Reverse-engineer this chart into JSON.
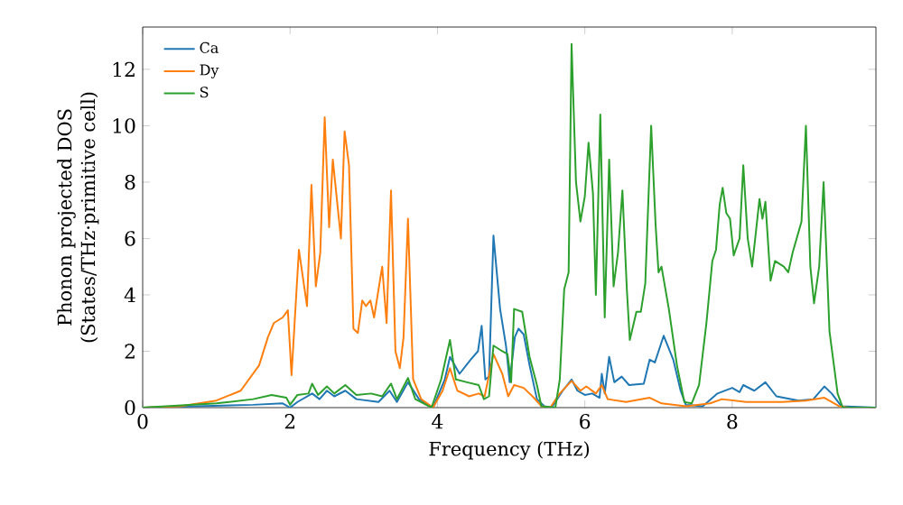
{
  "chart_data": {
    "type": "line",
    "xlabel": "Frequency (THz)",
    "ylabel": "Phonon projected DOS\n(States/THz·primitive cell)",
    "xlim": [
      0,
      9.95
    ],
    "ylim": [
      0,
      13.5
    ],
    "xticks": [
      0,
      2,
      4,
      6,
      8
    ],
    "yticks": [
      0,
      2,
      4,
      6,
      8,
      10,
      12
    ],
    "grid": false,
    "legend": "top left",
    "marker": "none",
    "line_style": "solid",
    "series": [
      {
        "name": "Ca",
        "color": "#1f77b4",
        "x": [
          0,
          1.5,
          1.9,
          2.0,
          2.1,
          2.3,
          2.4,
          2.5,
          2.6,
          2.75,
          2.9,
          3.2,
          3.35,
          3.45,
          3.6,
          3.75,
          3.94,
          4.1,
          4.17,
          4.3,
          4.45,
          4.55,
          4.6,
          4.65,
          4.7,
          4.76,
          4.85,
          4.93,
          4.98,
          5.05,
          5.1,
          5.17,
          5.25,
          5.35,
          5.45,
          5.55,
          5.7,
          5.82,
          5.9,
          6.0,
          6.1,
          6.2,
          6.23,
          6.27,
          6.33,
          6.4,
          6.5,
          6.6,
          6.8,
          6.88,
          6.95,
          7.07,
          7.2,
          7.3,
          7.37,
          7.6,
          7.8,
          8.0,
          8.1,
          8.15,
          8.3,
          8.45,
          8.6,
          8.9,
          9.1,
          9.25,
          9.35,
          9.48,
          9.95
        ],
        "values": [
          0,
          0.1,
          0.15,
          0,
          0.2,
          0.5,
          0.3,
          0.6,
          0.4,
          0.6,
          0.3,
          0.2,
          0.6,
          0.2,
          0.9,
          0.3,
          0,
          1.0,
          1.8,
          1.2,
          1.7,
          2.0,
          2.9,
          1.0,
          1.1,
          6.1,
          3.5,
          2.2,
          0.9,
          2.5,
          2.8,
          2.6,
          1.5,
          0.3,
          0.05,
          0,
          0.6,
          1.0,
          0.6,
          0.45,
          0.5,
          0.35,
          1.2,
          0.5,
          1.8,
          0.9,
          1.1,
          0.8,
          0.85,
          1.7,
          1.6,
          2.55,
          1.7,
          0.6,
          0.1,
          0.05,
          0.5,
          0.7,
          0.55,
          0.8,
          0.6,
          0.9,
          0.4,
          0.25,
          0.3,
          0.75,
          0.5,
          0.05,
          0
        ]
      },
      {
        "name": "Dy",
        "color": "#ff7f0e",
        "x": [
          0,
          0.51,
          1.0,
          1.33,
          1.58,
          1.7,
          1.78,
          1.9,
          1.97,
          2.02,
          2.12,
          2.23,
          2.29,
          2.35,
          2.41,
          2.47,
          2.53,
          2.58,
          2.69,
          2.74,
          2.8,
          2.86,
          2.92,
          2.98,
          3.03,
          3.09,
          3.14,
          3.25,
          3.31,
          3.37,
          3.43,
          3.49,
          3.54,
          3.6,
          3.67,
          3.78,
          3.94,
          4.07,
          4.17,
          4.27,
          4.43,
          4.56,
          4.64,
          4.76,
          4.88,
          4.96,
          5.04,
          5.17,
          5.29,
          5.41,
          5.53,
          5.66,
          5.82,
          5.94,
          6.02,
          6.15,
          6.23,
          6.31,
          6.56,
          6.88,
          7.04,
          7.37,
          7.7,
          7.86,
          8.19,
          8.68,
          9.0,
          9.25,
          9.45,
          9.58,
          9.95
        ],
        "values": [
          0,
          0.05,
          0.25,
          0.6,
          1.5,
          2.5,
          3.0,
          3.2,
          3.45,
          1.15,
          5.6,
          3.6,
          7.9,
          4.3,
          5.5,
          10.3,
          6.4,
          8.8,
          6.0,
          9.8,
          8.6,
          2.8,
          2.65,
          3.8,
          3.6,
          3.8,
          3.2,
          5.0,
          3.0,
          7.7,
          2.0,
          1.4,
          2.5,
          6.7,
          1.0,
          0.3,
          0,
          0.6,
          1.4,
          0.6,
          0.4,
          0.5,
          0.4,
          1.9,
          1.2,
          0.4,
          0.8,
          0.7,
          0.4,
          0.05,
          0,
          0.5,
          0.95,
          0.6,
          0.75,
          0.5,
          0.8,
          0.3,
          0.2,
          0.35,
          0.15,
          0.05,
          0.15,
          0.3,
          0.2,
          0.2,
          0.25,
          0.35,
          0.05,
          0,
          0
        ]
      },
      {
        "name": "S",
        "color": "#2ca02c",
        "x": [
          0,
          1.0,
          1.5,
          1.75,
          1.95,
          2.0,
          2.1,
          2.25,
          2.3,
          2.38,
          2.5,
          2.6,
          2.75,
          2.9,
          3.1,
          3.25,
          3.37,
          3.45,
          3.6,
          3.7,
          3.92,
          4.05,
          4.17,
          4.25,
          4.4,
          4.56,
          4.63,
          4.7,
          4.76,
          4.88,
          4.95,
          5.0,
          5.04,
          5.15,
          5.25,
          5.35,
          5.41,
          5.6,
          5.66,
          5.72,
          5.78,
          5.82,
          5.88,
          5.94,
          6.0,
          6.05,
          6.11,
          6.15,
          6.21,
          6.27,
          6.33,
          6.39,
          6.45,
          6.51,
          6.57,
          6.61,
          6.7,
          6.76,
          6.82,
          6.9,
          6.96,
          7.0,
          7.04,
          7.14,
          7.25,
          7.35,
          7.45,
          7.55,
          7.65,
          7.73,
          7.78,
          7.83,
          7.87,
          7.92,
          7.97,
          8.02,
          8.1,
          8.15,
          8.21,
          8.27,
          8.37,
          8.41,
          8.45,
          8.52,
          8.58,
          8.7,
          8.76,
          8.82,
          8.94,
          9.0,
          9.06,
          9.11,
          9.18,
          9.24,
          9.32,
          9.43,
          9.5,
          9.95
        ],
        "values": [
          0,
          0.15,
          0.3,
          0.45,
          0.35,
          0.1,
          0.45,
          0.5,
          0.85,
          0.45,
          0.75,
          0.5,
          0.8,
          0.45,
          0.5,
          0.4,
          0.85,
          0.3,
          1.05,
          0.3,
          0,
          1.0,
          2.4,
          1.0,
          0.9,
          0.8,
          0.3,
          0.4,
          2.2,
          2.0,
          1.9,
          0.9,
          3.5,
          3.4,
          1.8,
          0.8,
          0.05,
          0,
          1.0,
          4.2,
          4.8,
          12.9,
          8.0,
          6.6,
          7.5,
          9.4,
          7.6,
          4.0,
          10.4,
          3.2,
          8.8,
          4.3,
          5.5,
          7.7,
          4.2,
          2.4,
          3.4,
          3.4,
          4.4,
          10.0,
          6.5,
          4.8,
          5.0,
          3.5,
          1.5,
          0.2,
          0.15,
          0.8,
          3.0,
          5.2,
          5.6,
          7.2,
          7.8,
          6.9,
          6.7,
          5.4,
          6.0,
          8.6,
          6.0,
          5.0,
          7.4,
          6.7,
          7.3,
          4.5,
          5.2,
          5.0,
          4.8,
          5.5,
          6.6,
          10.0,
          5.0,
          3.7,
          5.0,
          8.0,
          2.7,
          0.5,
          0,
          0
        ]
      }
    ]
  }
}
